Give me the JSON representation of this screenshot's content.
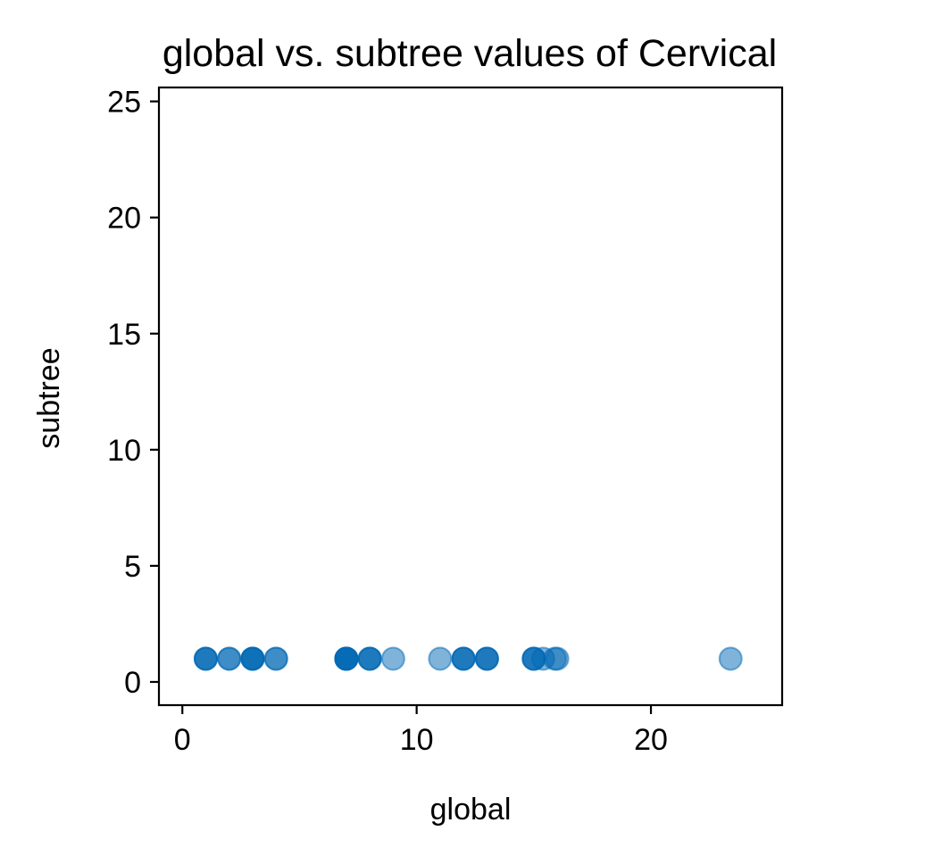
{
  "chart_data": {
    "type": "scatter",
    "title": "global vs. subtree values of Cervical",
    "xlabel": "global",
    "ylabel": "subtree",
    "xlim": [
      -1,
      25.6
    ],
    "ylim": [
      -1,
      25.6
    ],
    "xticks": [
      0,
      10,
      20
    ],
    "yticks": [
      0,
      5,
      10,
      15,
      20,
      25
    ],
    "grid": false,
    "marker_color": "#0068b4",
    "marker_alpha": 0.5,
    "points": [
      {
        "x": 1,
        "y": 1
      },
      {
        "x": 1,
        "y": 1
      },
      {
        "x": 1,
        "y": 1
      },
      {
        "x": 2,
        "y": 1
      },
      {
        "x": 2,
        "y": 1
      },
      {
        "x": 3,
        "y": 1
      },
      {
        "x": 3,
        "y": 1
      },
      {
        "x": 3,
        "y": 1
      },
      {
        "x": 3,
        "y": 1
      },
      {
        "x": 4,
        "y": 1
      },
      {
        "x": 4,
        "y": 1
      },
      {
        "x": 7,
        "y": 1
      },
      {
        "x": 7,
        "y": 1
      },
      {
        "x": 7,
        "y": 1
      },
      {
        "x": 7,
        "y": 1
      },
      {
        "x": 7,
        "y": 1
      },
      {
        "x": 8,
        "y": 1
      },
      {
        "x": 8,
        "y": 1
      },
      {
        "x": 8,
        "y": 1
      },
      {
        "x": 9,
        "y": 1
      },
      {
        "x": 11,
        "y": 1
      },
      {
        "x": 12,
        "y": 1
      },
      {
        "x": 12,
        "y": 1
      },
      {
        "x": 12,
        "y": 1
      },
      {
        "x": 13,
        "y": 1
      },
      {
        "x": 13,
        "y": 1
      },
      {
        "x": 13,
        "y": 1
      },
      {
        "x": 15,
        "y": 1
      },
      {
        "x": 15,
        "y": 1
      },
      {
        "x": 15,
        "y": 1
      },
      {
        "x": 15.4,
        "y": 1
      },
      {
        "x": 15.9,
        "y": 1
      },
      {
        "x": 16,
        "y": 1
      },
      {
        "x": 23.4,
        "y": 1
      }
    ]
  }
}
